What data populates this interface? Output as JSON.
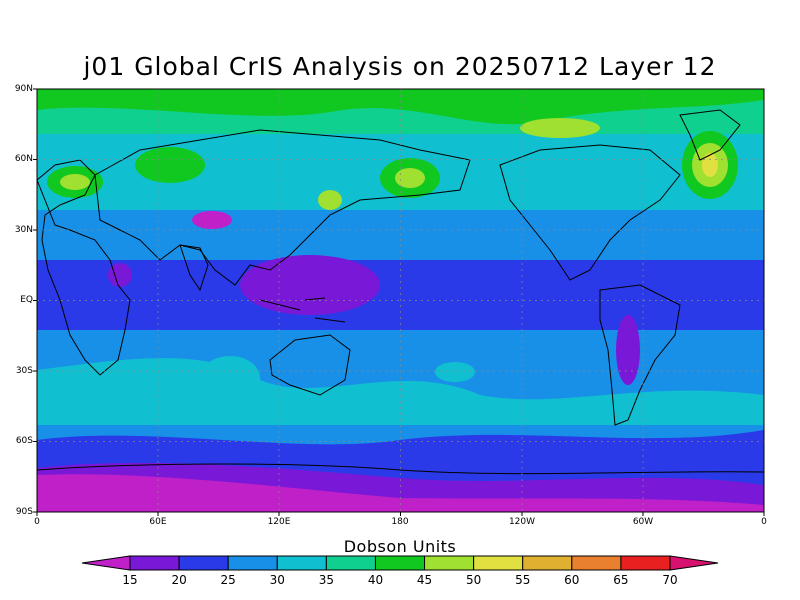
{
  "title": "j01 Global CrIS Analysis on 20250712 Layer 12",
  "lat_ticks": [
    "90N",
    "60N",
    "30N",
    "EQ",
    "30S",
    "60S",
    "90S"
  ],
  "lon_ticks": [
    "0",
    "60E",
    "120E",
    "180",
    "120W",
    "60W",
    "0"
  ],
  "colorbar": {
    "title": "Dobson Units",
    "levels": [
      15,
      20,
      25,
      30,
      35,
      40,
      45,
      50,
      55,
      60,
      65,
      70
    ],
    "colors": [
      "#c020c8",
      "#7a18d8",
      "#2a3ae8",
      "#1890e8",
      "#10c0d0",
      "#10d090",
      "#10c820",
      "#a0e030",
      "#e0e040",
      "#e0b030",
      "#e88030",
      "#e82020",
      "#d81070"
    ]
  },
  "chart_data": {
    "type": "heatmap",
    "projection": "cylindrical equidistant",
    "quantity": "Ozone (Dobson Units)",
    "x_range": [
      "0",
      "0"
    ],
    "y_range": [
      "90S",
      "90N"
    ],
    "grid": true
  }
}
